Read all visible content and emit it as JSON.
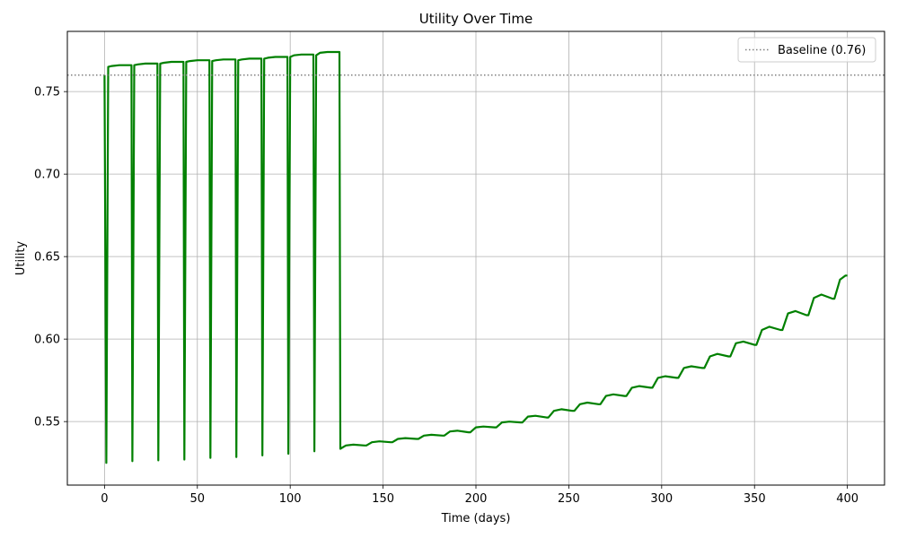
{
  "chart_data": {
    "type": "line",
    "title": "Utility Over Time",
    "xlabel": "Time (days)",
    "ylabel": "Utility",
    "xlim": [
      -20,
      420
    ],
    "ylim": [
      0.5115,
      0.7865
    ],
    "x_ticks": [
      0,
      50,
      100,
      150,
      200,
      250,
      300,
      350,
      400
    ],
    "y_ticks": [
      0.55,
      0.6,
      0.65,
      0.7,
      0.75
    ],
    "y_tick_labels": [
      "0.55",
      "0.60",
      "0.65",
      "0.70",
      "0.75"
    ],
    "grid": true,
    "legend_position": "top-right",
    "series": [
      {
        "name": "",
        "color": "#008000",
        "style": "solid",
        "points": [
          [
            0,
            0.76
          ],
          [
            1,
            0.525
          ],
          [
            2,
            0.765
          ],
          [
            4,
            0.7655
          ],
          [
            8,
            0.766
          ],
          [
            14,
            0.766
          ],
          [
            14.5,
            0.766
          ],
          [
            15,
            0.526
          ],
          [
            16,
            0.766
          ],
          [
            18,
            0.7665
          ],
          [
            22,
            0.767
          ],
          [
            28,
            0.767
          ],
          [
            28.5,
            0.767
          ],
          [
            29,
            0.5265
          ],
          [
            30,
            0.767
          ],
          [
            32,
            0.7675
          ],
          [
            36,
            0.768
          ],
          [
            42,
            0.768
          ],
          [
            42.5,
            0.768
          ],
          [
            43,
            0.527
          ],
          [
            44,
            0.768
          ],
          [
            46,
            0.7685
          ],
          [
            50,
            0.769
          ],
          [
            56,
            0.769
          ],
          [
            56.5,
            0.769
          ],
          [
            57,
            0.528
          ],
          [
            58,
            0.7685
          ],
          [
            60,
            0.769
          ],
          [
            64,
            0.7695
          ],
          [
            70,
            0.7695
          ],
          [
            70.5,
            0.7695
          ],
          [
            71,
            0.5285
          ],
          [
            72,
            0.769
          ],
          [
            74,
            0.7695
          ],
          [
            78,
            0.77
          ],
          [
            84,
            0.77
          ],
          [
            84.5,
            0.77
          ],
          [
            85,
            0.5295
          ],
          [
            86,
            0.77
          ],
          [
            88,
            0.7705
          ],
          [
            92,
            0.771
          ],
          [
            98,
            0.771
          ],
          [
            98.5,
            0.771
          ],
          [
            99,
            0.5305
          ],
          [
            100,
            0.771
          ],
          [
            102,
            0.772
          ],
          [
            106,
            0.7725
          ],
          [
            112,
            0.7725
          ],
          [
            112.5,
            0.7725
          ],
          [
            113,
            0.532
          ],
          [
            114,
            0.772
          ],
          [
            116,
            0.7735
          ],
          [
            120,
            0.774
          ],
          [
            126,
            0.774
          ],
          [
            126.5,
            0.774
          ],
          [
            127,
            0.5335
          ],
          [
            130,
            0.5355
          ],
          [
            134,
            0.536
          ],
          [
            140,
            0.5355
          ],
          [
            141,
            0.5355
          ],
          [
            144,
            0.5375
          ],
          [
            148,
            0.538
          ],
          [
            154,
            0.5375
          ],
          [
            155,
            0.5375
          ],
          [
            158,
            0.5395
          ],
          [
            162,
            0.54
          ],
          [
            168,
            0.5395
          ],
          [
            169,
            0.5395
          ],
          [
            172,
            0.5415
          ],
          [
            176,
            0.542
          ],
          [
            182,
            0.5415
          ],
          [
            183,
            0.5415
          ],
          [
            186,
            0.544
          ],
          [
            190,
            0.5445
          ],
          [
            196,
            0.5435
          ],
          [
            197,
            0.5435
          ],
          [
            200,
            0.5465
          ],
          [
            204,
            0.547
          ],
          [
            210,
            0.5465
          ],
          [
            211,
            0.5465
          ],
          [
            214,
            0.5495
          ],
          [
            218,
            0.55
          ],
          [
            224,
            0.5495
          ],
          [
            225,
            0.5495
          ],
          [
            228,
            0.553
          ],
          [
            232,
            0.5535
          ],
          [
            238,
            0.5525
          ],
          [
            239,
            0.5525
          ],
          [
            242,
            0.5565
          ],
          [
            246,
            0.5575
          ],
          [
            252,
            0.5565
          ],
          [
            253,
            0.5565
          ],
          [
            256,
            0.5605
          ],
          [
            260,
            0.5615
          ],
          [
            266,
            0.5605
          ],
          [
            267,
            0.5605
          ],
          [
            270,
            0.5655
          ],
          [
            274,
            0.5665
          ],
          [
            280,
            0.5655
          ],
          [
            281,
            0.5655
          ],
          [
            284,
            0.5705
          ],
          [
            288,
            0.5715
          ],
          [
            294,
            0.5705
          ],
          [
            295,
            0.5705
          ],
          [
            298,
            0.5765
          ],
          [
            302,
            0.5775
          ],
          [
            308,
            0.5765
          ],
          [
            309,
            0.5765
          ],
          [
            312,
            0.5825
          ],
          [
            316,
            0.5835
          ],
          [
            322,
            0.5825
          ],
          [
            323,
            0.5825
          ],
          [
            326,
            0.5895
          ],
          [
            330,
            0.591
          ],
          [
            336,
            0.5895
          ],
          [
            337,
            0.5895
          ],
          [
            340,
            0.5975
          ],
          [
            344,
            0.5985
          ],
          [
            350,
            0.5965
          ],
          [
            351,
            0.5965
          ],
          [
            354,
            0.6055
          ],
          [
            358,
            0.6075
          ],
          [
            364,
            0.6055
          ],
          [
            365,
            0.6055
          ],
          [
            368,
            0.6155
          ],
          [
            372,
            0.617
          ],
          [
            378,
            0.6145
          ],
          [
            379,
            0.6145
          ],
          [
            382,
            0.625
          ],
          [
            386,
            0.627
          ],
          [
            392,
            0.6245
          ],
          [
            393,
            0.6245
          ],
          [
            396,
            0.636
          ],
          [
            399,
            0.6385
          ],
          [
            400,
            0.6385
          ]
        ]
      },
      {
        "name": "Baseline (0.76)",
        "color": "#808080",
        "style": "dotted",
        "hline": 0.76
      }
    ]
  }
}
